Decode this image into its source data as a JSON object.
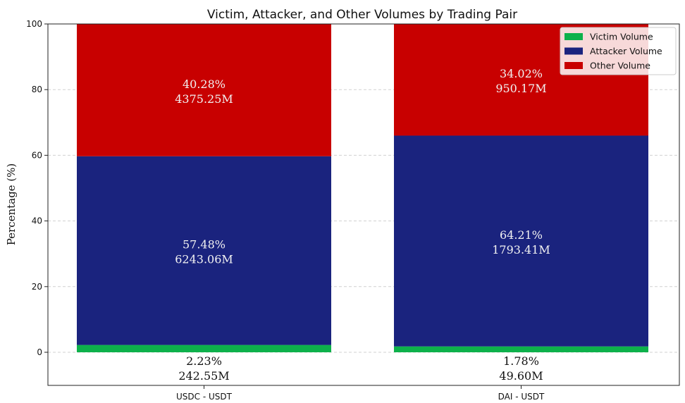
{
  "chart_data": {
    "type": "bar",
    "stacked": true,
    "title": "Victim, Attacker, and Other Volumes by Trading Pair",
    "xlabel": "",
    "ylabel": "Percentage (%)",
    "ylim": [
      0,
      100
    ],
    "yticks": [
      0,
      20,
      40,
      60,
      80,
      100
    ],
    "grid": true,
    "legend_position": "top-right",
    "categories": [
      "USDC - USDT",
      "DAI - USDT"
    ],
    "series": [
      {
        "name": "Victim Volume",
        "color": "#0db14b",
        "values": [
          2.23,
          1.78
        ],
        "labels": [
          {
            "pct": "2.23%",
            "vol": "242.55M"
          },
          {
            "pct": "1.78%",
            "vol": "49.60M"
          }
        ]
      },
      {
        "name": "Attacker Volume",
        "color": "#1a237e",
        "values": [
          57.48,
          64.21
        ],
        "labels": [
          {
            "pct": "57.48%",
            "vol": "6243.06M"
          },
          {
            "pct": "64.21%",
            "vol": "1793.41M"
          }
        ]
      },
      {
        "name": "Other Volume",
        "color": "#c80000",
        "values": [
          40.28,
          34.02
        ],
        "labels": [
          {
            "pct": "40.28%",
            "vol": "4375.25M"
          },
          {
            "pct": "34.02%",
            "vol": "950.17M"
          }
        ]
      }
    ]
  }
}
